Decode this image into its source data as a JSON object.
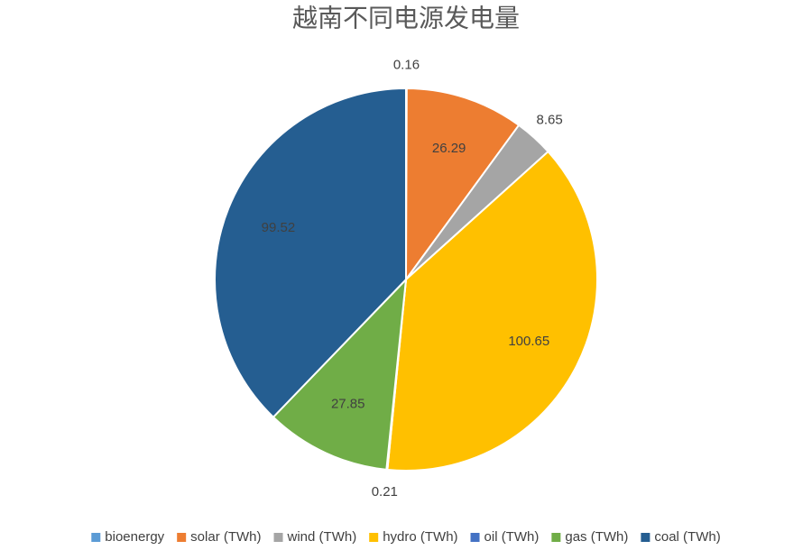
{
  "chart_data": {
    "type": "pie",
    "title": "越南不同电源发电量",
    "categories": [
      "bioenergy",
      "solar (TWh)",
      "wind (TWh)",
      "hydro (TWh)",
      "oil (TWh)",
      "gas (TWh)",
      "coal (TWh)"
    ],
    "values": [
      0.16,
      26.29,
      8.65,
      100.65,
      0.21,
      27.85,
      99.52
    ],
    "colors": [
      "#5b9bd5",
      "#ed7d31",
      "#a5a5a5",
      "#ffc000",
      "#4472c4",
      "#70ad47",
      "#255e91"
    ],
    "legend": "bottom"
  }
}
